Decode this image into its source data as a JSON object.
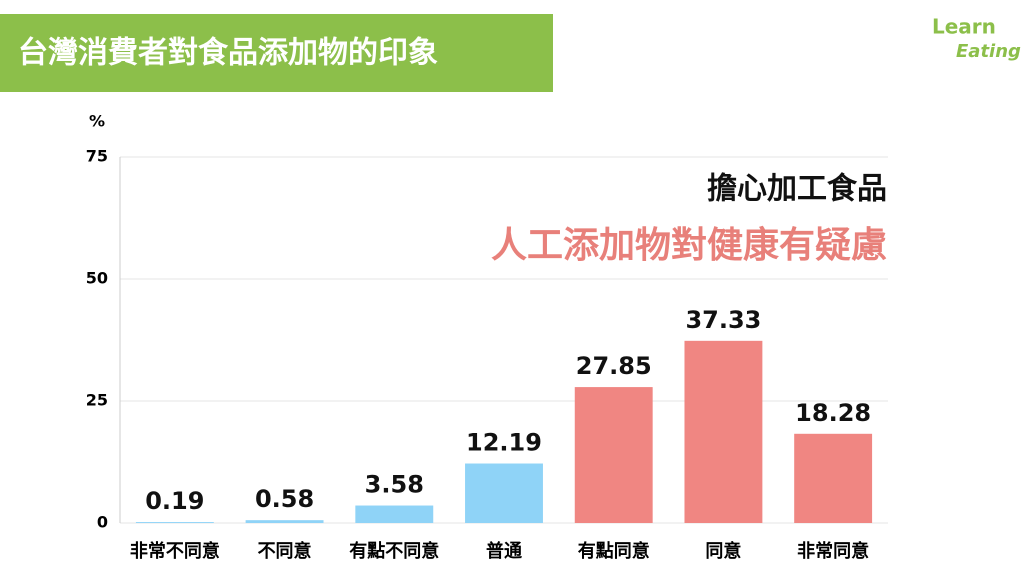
{
  "chart_data": {
    "type": "bar",
    "title": "台灣消費者對食品添加物的印象",
    "y_label": "%",
    "annotations": [
      "擔心加工食品",
      "人工添加物對健康有疑慮"
    ],
    "categories": [
      "非常不同意",
      "不同意",
      "有點不同意",
      "普通",
      "有點同意",
      "同意",
      "非常同意"
    ],
    "values": [
      0.19,
      0.58,
      3.58,
      12.19,
      27.85,
      37.33,
      18.28
    ],
    "colors": [
      "#8fd3f7",
      "#8fd3f7",
      "#8fd3f7",
      "#8fd3f7",
      "#f08682",
      "#f08682",
      "#f08682"
    ],
    "ylim": [
      0,
      75
    ],
    "yticks": [
      0,
      25,
      50,
      75
    ],
    "grid": true
  },
  "logo": {
    "line1": "Learn",
    "line2": "Eating"
  }
}
